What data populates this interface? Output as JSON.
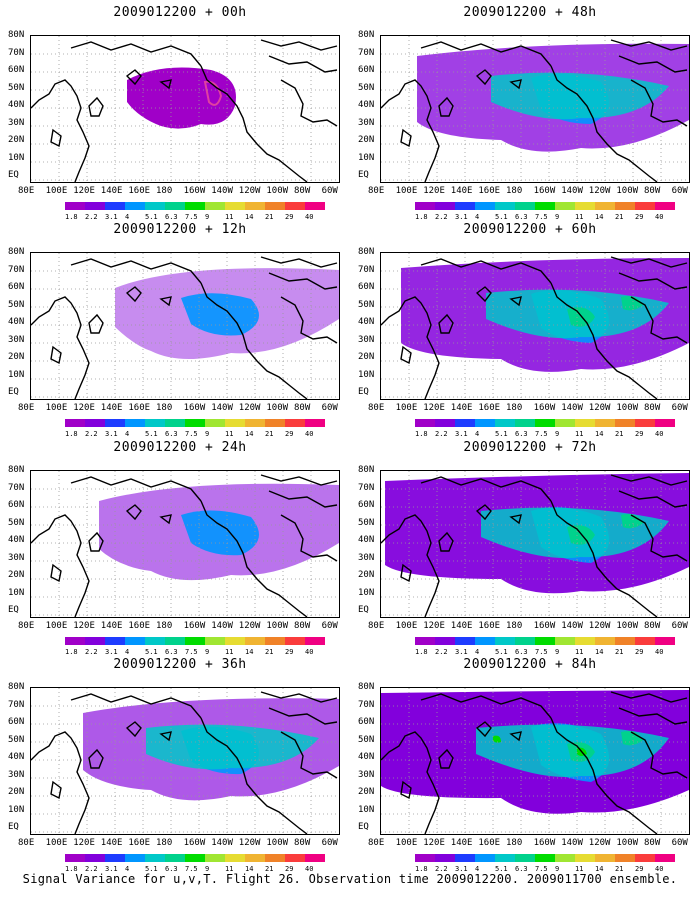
{
  "panels": [
    {
      "title": "2009012200 + 00h",
      "level": 0
    },
    {
      "title": "2009012200 + 12h",
      "level": 1
    },
    {
      "title": "2009012200 + 24h",
      "level": 2
    },
    {
      "title": "2009012200 + 36h",
      "level": 3
    },
    {
      "title": "2009012200 + 48h",
      "level": 4
    },
    {
      "title": "2009012200 + 60h",
      "level": 5
    },
    {
      "title": "2009012200 + 72h",
      "level": 6
    },
    {
      "title": "2009012200 + 84h",
      "level": 7
    }
  ],
  "y_labels": [
    "80N",
    "70N",
    "60N",
    "50N",
    "40N",
    "30N",
    "20N",
    "10N",
    "EQ"
  ],
  "x_labels": [
    "80E",
    "100E",
    "120E",
    "140E",
    "160E",
    "180",
    "160W",
    "140W",
    "120W",
    "100W",
    "80W",
    "60W"
  ],
  "colorbar": {
    "labels": [
      "1.8",
      "2.2",
      "3.1",
      "4",
      "5.1",
      "6.3",
      "7.5",
      "9",
      "11",
      "14",
      "21",
      "29",
      "40"
    ],
    "colors": [
      "#a000c8",
      "#8200dc",
      "#1e3cff",
      "#0096ff",
      "#00c8c8",
      "#00d28c",
      "#00dc00",
      "#a0e632",
      "#e6dc32",
      "#f0b432",
      "#f08228",
      "#fa3c3c",
      "#f00082"
    ]
  },
  "caption": "Signal Variance for u,v,T. Flight 26. Observation time 2009012200. 2009011700 ensemble."
}
